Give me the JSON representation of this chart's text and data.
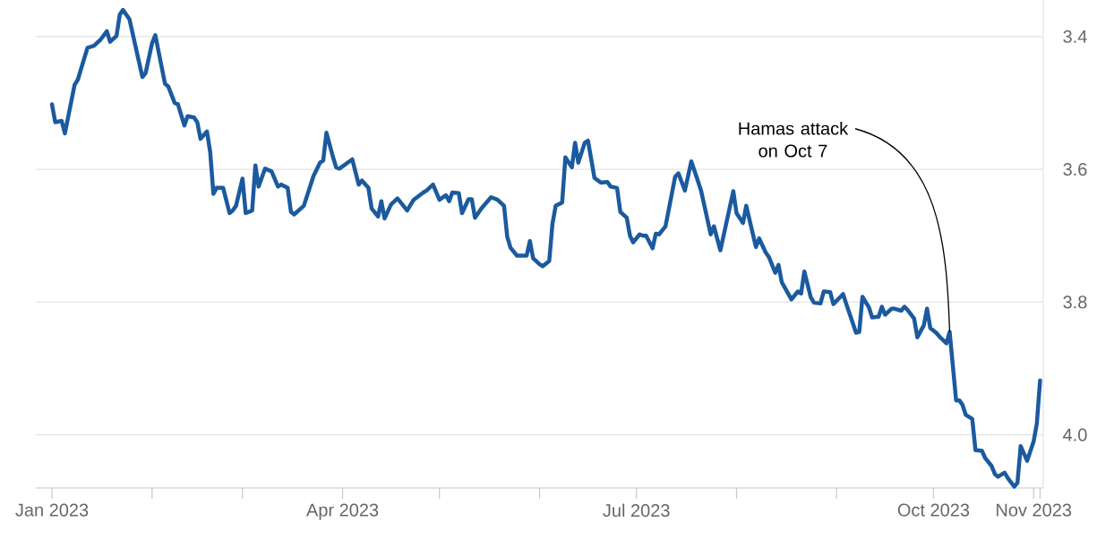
{
  "chart_data": {
    "type": "line",
    "color": "#1b5a9e",
    "x": [
      "2023-01-01",
      "2023-01-02",
      "2023-01-04",
      "2023-01-05",
      "2023-01-08",
      "2023-01-09",
      "2023-01-12",
      "2023-01-14",
      "2023-01-16",
      "2023-01-18",
      "2023-01-19",
      "2023-01-21",
      "2023-01-22",
      "2023-01-23",
      "2023-01-25",
      "2023-01-29",
      "2023-01-30",
      "2023-02-01",
      "2023-02-02",
      "2023-02-05",
      "2023-02-06",
      "2023-02-08",
      "2023-02-09",
      "2023-02-11",
      "2023-02-12",
      "2023-02-14",
      "2023-02-15",
      "2023-02-16",
      "2023-02-18",
      "2023-02-19",
      "2023-02-20",
      "2023-02-21",
      "2023-02-23",
      "2023-02-25",
      "2023-02-26",
      "2023-02-27",
      "2023-03-01",
      "2023-03-02",
      "2023-03-04",
      "2023-03-05",
      "2023-03-06",
      "2023-03-08",
      "2023-03-10",
      "2023-03-12",
      "2023-03-13",
      "2023-03-15",
      "2023-03-16",
      "2023-03-17",
      "2023-03-20",
      "2023-03-23",
      "2023-03-25",
      "2023-03-26",
      "2023-03-27",
      "2023-03-29",
      "2023-03-30",
      "2023-03-31",
      "2023-04-02",
      "2023-04-04",
      "2023-04-06",
      "2023-04-07",
      "2023-04-09",
      "2023-04-10",
      "2023-04-12",
      "2023-04-13",
      "2023-04-14",
      "2023-04-16",
      "2023-04-18",
      "2023-04-21",
      "2023-04-23",
      "2023-04-26",
      "2023-04-27",
      "2023-04-29",
      "2023-05-01",
      "2023-05-03",
      "2023-05-04",
      "2023-05-05",
      "2023-05-07",
      "2023-05-08",
      "2023-05-10",
      "2023-05-11",
      "2023-05-12",
      "2023-05-14",
      "2023-05-17",
      "2023-05-19",
      "2023-05-21",
      "2023-05-22",
      "2023-05-23",
      "2023-05-25",
      "2023-05-28",
      "2023-05-29",
      "2023-05-30",
      "2023-06-01",
      "2023-06-02",
      "2023-06-04",
      "2023-06-05",
      "2023-06-06",
      "2023-06-08",
      "2023-06-09",
      "2023-06-11",
      "2023-06-12",
      "2023-06-13",
      "2023-06-15",
      "2023-06-16",
      "2023-06-18",
      "2023-06-20",
      "2023-06-22",
      "2023-06-23",
      "2023-06-25",
      "2023-06-26",
      "2023-06-28",
      "2023-06-29",
      "2023-06-30",
      "2023-07-02",
      "2023-07-03",
      "2023-07-04",
      "2023-07-06",
      "2023-07-07",
      "2023-07-08",
      "2023-07-10",
      "2023-07-13",
      "2023-07-14",
      "2023-07-16",
      "2023-07-18",
      "2023-07-20",
      "2023-07-21",
      "2023-07-24",
      "2023-07-25",
      "2023-07-27",
      "2023-07-31",
      "2023-08-01",
      "2023-08-03",
      "2023-08-04",
      "2023-08-07",
      "2023-08-08",
      "2023-08-10",
      "2023-08-11",
      "2023-08-13",
      "2023-08-14",
      "2023-08-15",
      "2023-08-18",
      "2023-08-20",
      "2023-08-21",
      "2023-08-22",
      "2023-08-24",
      "2023-08-25",
      "2023-08-27",
      "2023-08-28",
      "2023-08-30",
      "2023-08-31",
      "2023-09-03",
      "2023-09-04",
      "2023-09-07",
      "2023-09-08",
      "2023-09-09",
      "2023-09-11",
      "2023-09-12",
      "2023-09-14",
      "2023-09-15",
      "2023-09-16",
      "2023-09-18",
      "2023-09-19",
      "2023-09-21",
      "2023-09-22",
      "2023-09-23",
      "2023-09-25",
      "2023-09-26",
      "2023-09-28",
      "2023-09-29",
      "2023-09-30",
      "2023-10-02",
      "2023-10-03",
      "2023-10-05",
      "2023-10-06",
      "2023-10-08",
      "2023-10-09",
      "2023-10-10",
      "2023-10-11",
      "2023-10-13",
      "2023-10-14",
      "2023-10-16",
      "2023-10-17",
      "2023-10-19",
      "2023-10-20",
      "2023-10-21",
      "2023-10-23",
      "2023-10-24",
      "2023-10-26",
      "2023-10-27",
      "2023-10-28",
      "2023-10-30",
      "2023-11-01",
      "2023-11-02",
      "2023-11-03"
    ],
    "values": [
      3.502,
      3.529,
      3.527,
      3.546,
      3.473,
      3.465,
      3.417,
      3.414,
      3.405,
      3.392,
      3.408,
      3.399,
      3.367,
      3.36,
      3.374,
      3.461,
      3.455,
      3.41,
      3.398,
      3.471,
      3.475,
      3.5,
      3.502,
      3.534,
      3.52,
      3.522,
      3.529,
      3.554,
      3.543,
      3.574,
      3.637,
      3.628,
      3.628,
      3.666,
      3.662,
      3.655,
      3.614,
      3.666,
      3.662,
      3.594,
      3.626,
      3.599,
      3.603,
      3.626,
      3.623,
      3.628,
      3.664,
      3.668,
      3.655,
      3.61,
      3.59,
      3.587,
      3.545,
      3.581,
      3.597,
      3.599,
      3.592,
      3.585,
      3.623,
      3.617,
      3.628,
      3.659,
      3.671,
      3.648,
      3.674,
      3.653,
      3.644,
      3.662,
      3.646,
      3.635,
      3.632,
      3.623,
      3.646,
      3.639,
      3.648,
      3.635,
      3.636,
      3.666,
      3.645,
      3.645,
      3.673,
      3.659,
      3.642,
      3.646,
      3.655,
      3.702,
      3.718,
      3.73,
      3.73,
      3.708,
      3.734,
      3.743,
      3.746,
      3.738,
      3.682,
      3.655,
      3.65,
      3.582,
      3.597,
      3.56,
      3.59,
      3.56,
      3.557,
      3.613,
      3.62,
      3.619,
      3.626,
      3.628,
      3.664,
      3.673,
      3.7,
      3.71,
      3.698,
      3.7,
      3.7,
      3.719,
      3.697,
      3.698,
      3.686,
      3.611,
      3.606,
      3.632,
      3.588,
      3.617,
      3.632,
      3.698,
      3.686,
      3.722,
      3.633,
      3.666,
      3.681,
      3.655,
      3.717,
      3.704,
      3.725,
      3.732,
      3.756,
      3.744,
      3.77,
      3.796,
      3.784,
      3.787,
      3.754,
      3.793,
      3.801,
      3.802,
      3.784,
      3.785,
      3.803,
      3.788,
      3.803,
      3.846,
      3.845,
      3.792,
      3.808,
      3.823,
      3.822,
      3.807,
      3.819,
      3.81,
      3.81,
      3.813,
      3.807,
      3.812,
      3.825,
      3.853,
      3.835,
      3.81,
      3.839,
      3.847,
      3.853,
      3.862,
      3.845,
      3.948,
      3.948,
      3.955,
      3.97,
      3.976,
      4.023,
      4.024,
      4.035,
      4.047,
      4.059,
      4.063,
      4.057,
      4.065,
      4.078,
      4.072,
      4.017,
      4.039,
      4.01,
      3.983,
      3.918
    ],
    "xlim": [
      "2022-12-27",
      "2023-11-04"
    ],
    "ylim": [
      4.08,
      3.345
    ],
    "xticks": [
      {
        "value": "2023-01-01",
        "label": "Jan 2023"
      },
      {
        "value": "2023-02-01",
        "label": null
      },
      {
        "value": "2023-03-01",
        "label": null
      },
      {
        "value": "2023-04-01",
        "label": "Apr 2023"
      },
      {
        "value": "2023-05-01",
        "label": null
      },
      {
        "value": "2023-06-01",
        "label": null
      },
      {
        "value": "2023-07-01",
        "label": "Jul 2023"
      },
      {
        "value": "2023-08-01",
        "label": null
      },
      {
        "value": "2023-09-01",
        "label": null
      },
      {
        "value": "2023-10-01",
        "label": "Oct 2023"
      },
      {
        "value": "2023-11-01",
        "label": "Nov 2023"
      },
      {
        "value": "2023-11-03",
        "label": null
      }
    ],
    "yticks": [
      3.4,
      3.6,
      3.8,
      {
        "value": 4.0,
        "label": "4.0"
      }
    ],
    "grid": "y",
    "annotations": [
      {
        "text": "Hamas attack on Oct 7",
        "x": "2023-10-06",
        "y": 3.845
      }
    ]
  }
}
